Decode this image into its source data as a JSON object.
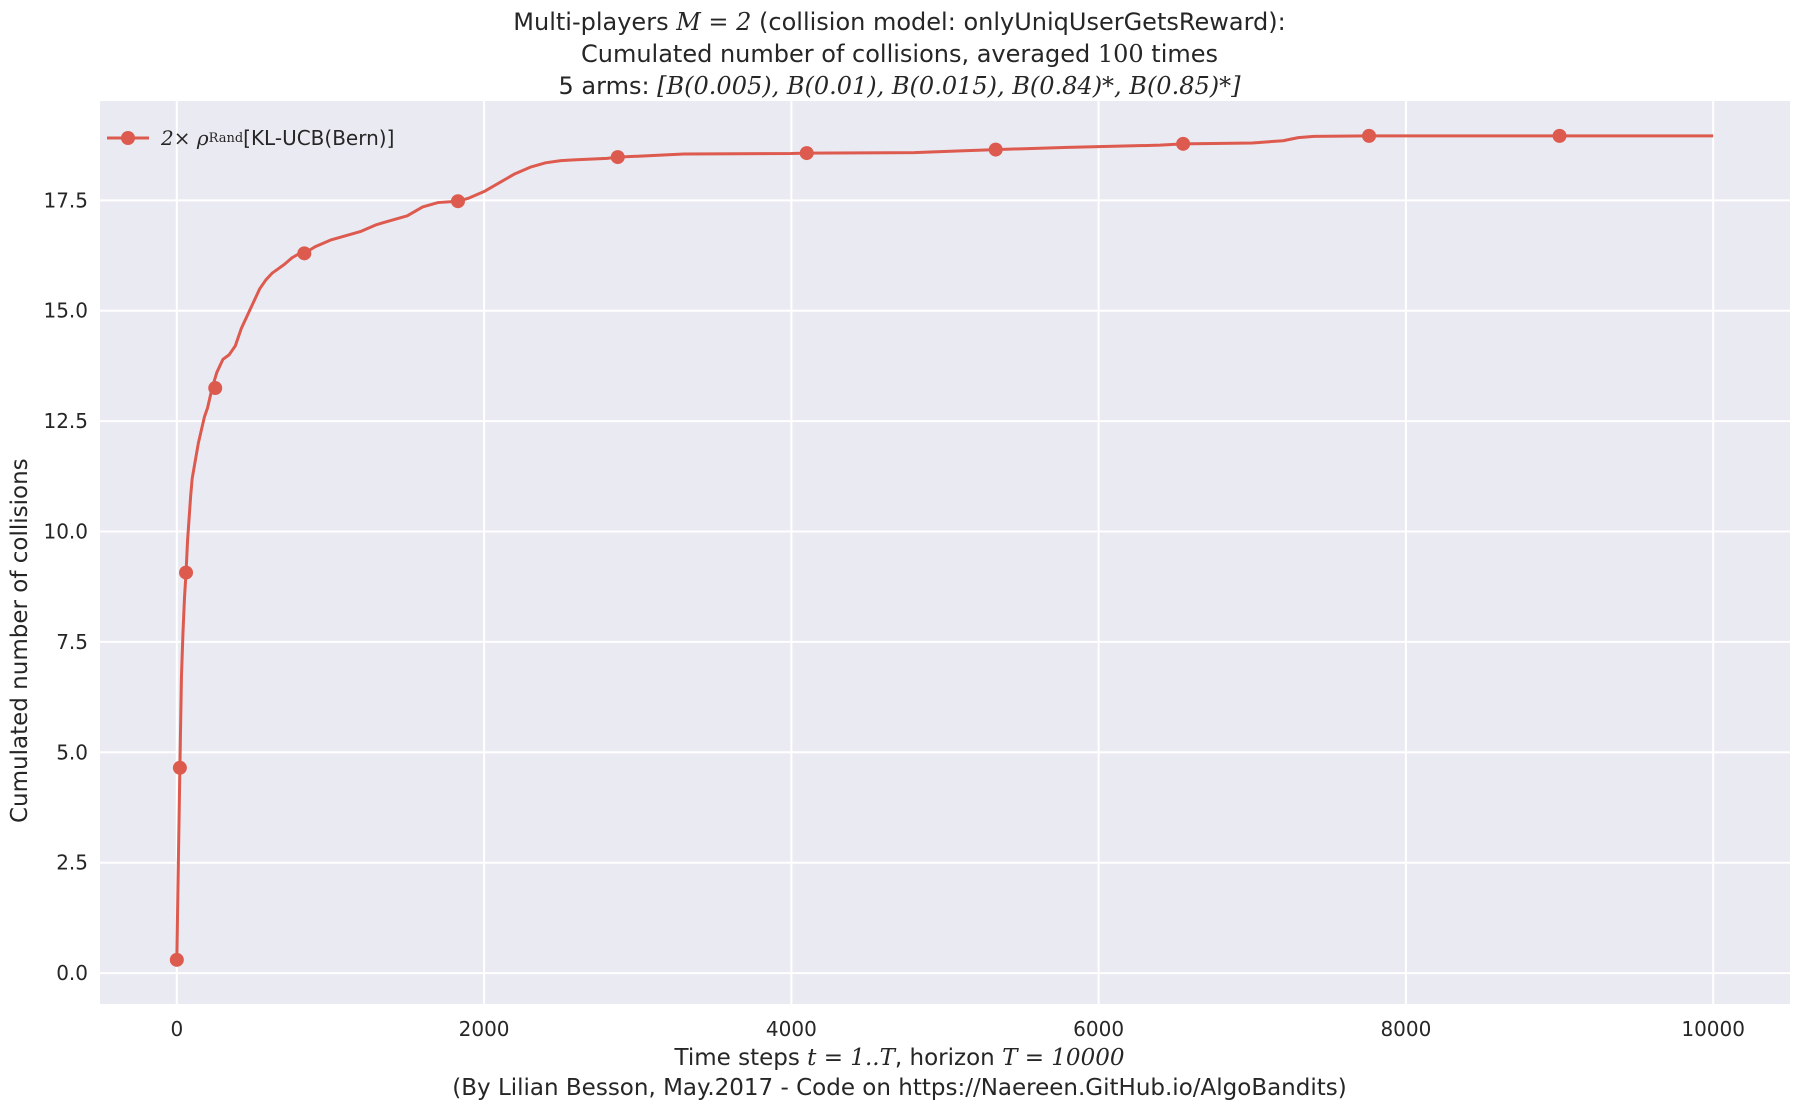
{
  "chart_data": {
    "type": "line",
    "title_lines": [
      {
        "pre": "Multi-players ",
        "math": "M = 2",
        "post": " (collision model: onlyUniqUserGetsReward):"
      },
      {
        "pre": "Cumulated number of collisions, averaged ",
        "math": "100",
        "post": " times"
      },
      {
        "pre": "5 arms: ",
        "math": "[B(0.005), B(0.01), B(0.015), B(0.84)*, B(0.85)*]",
        "post": ""
      }
    ],
    "xlabel": {
      "pre": "Time steps ",
      "math1": "t = 1..T",
      "mid": ", horizon ",
      "math2": "T = 10000"
    },
    "xlabel_note": "(By Lilian Besson, May.2017 - Code on https://Naereen.GitHub.io/AlgoBandits)",
    "ylabel": "Cumulated number of collisions",
    "xlim": [
      -500,
      10500
    ],
    "ylim": [
      -0.7,
      19.75
    ],
    "xticks": [
      0,
      2000,
      4000,
      6000,
      8000,
      10000
    ],
    "xtick_labels": [
      "0",
      "2000",
      "4000",
      "6000",
      "8000",
      "10000"
    ],
    "yticks": [
      0.0,
      2.5,
      5.0,
      7.5,
      10.0,
      12.5,
      15.0,
      17.5
    ],
    "ytick_labels": [
      "0.0",
      "2.5",
      "5.0",
      "7.5",
      "10.0",
      "12.5",
      "15.0",
      "17.5"
    ],
    "grid": true,
    "legend_position": "top-left",
    "series": [
      {
        "name_math": "2× ρ",
        "name_sup": "Rand",
        "name_text": "[KL-UCB(Bern)]",
        "color": "#dd5a4f",
        "x": [
          0,
          10,
          20,
          30,
          40,
          50,
          60,
          70,
          80,
          90,
          100,
          120,
          140,
          160,
          180,
          200,
          230,
          260,
          300,
          340,
          380,
          420,
          460,
          500,
          540,
          580,
          620,
          660,
          700,
          750,
          800,
          830,
          900,
          1000,
          1100,
          1200,
          1300,
          1400,
          1500,
          1600,
          1700,
          1830,
          1900,
          2000,
          2100,
          2200,
          2300,
          2400,
          2500,
          2600,
          2800,
          2870,
          3000,
          3300,
          4000,
          4100,
          4800,
          5100,
          5330,
          5800,
          6400,
          6550,
          7000,
          7200,
          7300,
          7400,
          7760,
          8000,
          9000,
          10000
        ],
        "y": [
          0.3,
          2.5,
          4.65,
          6.7,
          7.7,
          8.5,
          9.07,
          9.8,
          10.3,
          10.8,
          11.2,
          11.6,
          12.0,
          12.3,
          12.6,
          12.8,
          13.25,
          13.6,
          13.9,
          14.0,
          14.2,
          14.6,
          14.9,
          15.2,
          15.5,
          15.7,
          15.85,
          15.95,
          16.05,
          16.2,
          16.3,
          16.3,
          16.45,
          16.6,
          16.7,
          16.8,
          16.95,
          17.05,
          17.15,
          17.35,
          17.45,
          17.48,
          17.55,
          17.7,
          17.9,
          18.1,
          18.25,
          18.35,
          18.4,
          18.42,
          18.45,
          18.48,
          18.5,
          18.55,
          18.56,
          18.57,
          18.58,
          18.62,
          18.65,
          18.7,
          18.75,
          18.78,
          18.8,
          18.85,
          18.92,
          18.95,
          18.96,
          18.96,
          18.96,
          18.96
        ],
        "marker_x": [
          0,
          20,
          60,
          250,
          830,
          1830,
          2870,
          4100,
          5330,
          6550,
          7760,
          9000
        ],
        "marker_y": [
          0.3,
          4.65,
          9.07,
          13.25,
          16.3,
          17.48,
          18.48,
          18.57,
          18.65,
          18.78,
          18.96,
          18.96
        ]
      }
    ]
  }
}
